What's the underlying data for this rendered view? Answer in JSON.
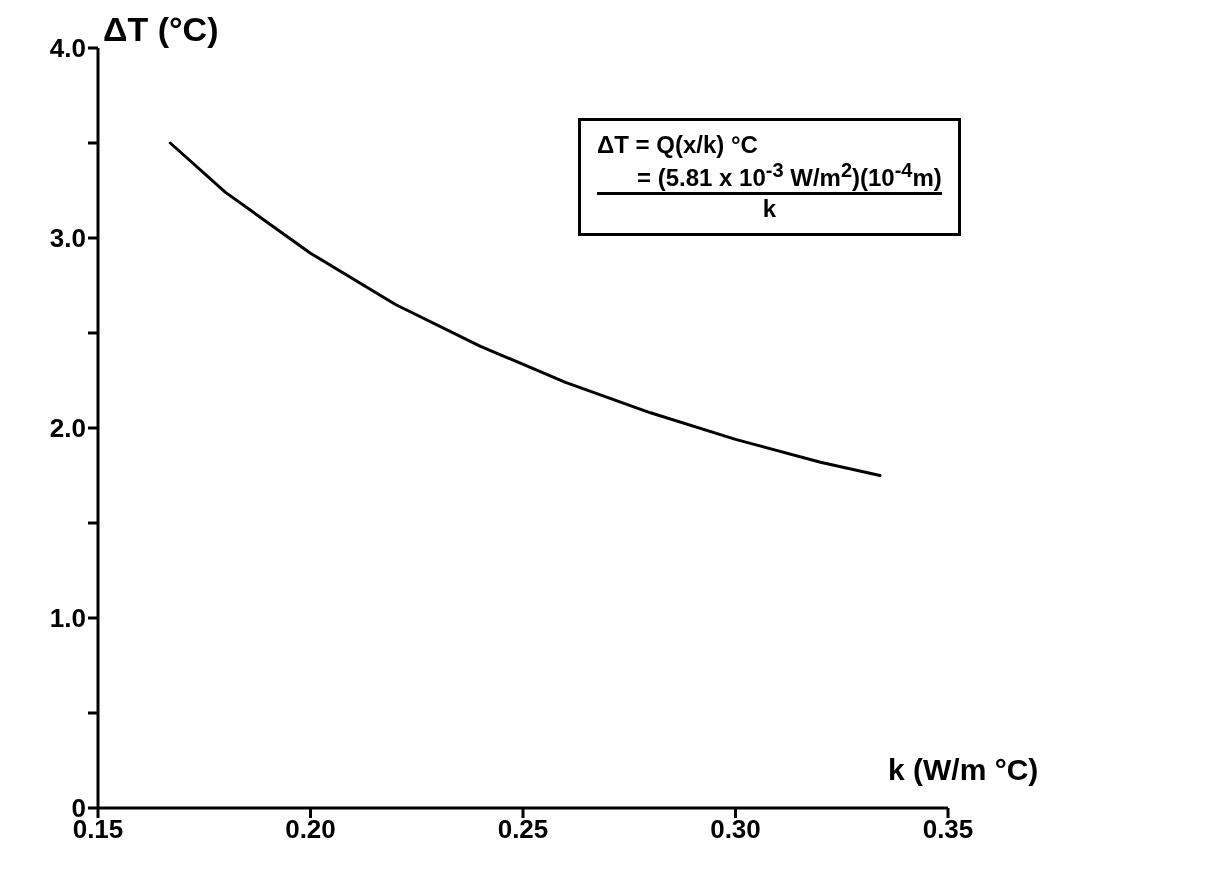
{
  "chart_data": {
    "type": "line",
    "xlabel": "k (W/m °C)",
    "ylabel": "ΔT (°C)",
    "annotations": [
      "ΔT = Q(x/k)  °C",
      "= (5.81 x 10$^{-3}$ W/m$^{2}$)(10$^{-4}$m)",
      "k"
    ],
    "x": [
      0.167,
      0.18,
      0.2,
      0.22,
      0.24,
      0.26,
      0.28,
      0.3,
      0.32,
      0.334
    ],
    "series": [
      {
        "color": "#000000",
        "values": [
          3.5,
          3.24,
          2.92,
          2.65,
          2.43,
          2.24,
          2.08,
          1.94,
          1.82,
          1.75
        ]
      }
    ],
    "xlim": [
      0.15,
      0.35
    ],
    "xticks": [
      0.15,
      {
        "value": 0.2,
        "label": "0.20"
      },
      0.25,
      {
        "value": 0.3,
        "label": "0.30"
      },
      0.35
    ],
    "ylim": [
      0,
      4
    ],
    "yticks": [
      0,
      {
        "value": 0.5,
        "label": null
      },
      {
        "value": 1,
        "label": "1.0"
      },
      {
        "value": 1.5,
        "label": null
      },
      {
        "value": 2,
        "label": "2.0"
      },
      {
        "value": 2.5,
        "label": null
      },
      {
        "value": 3,
        "label": "3.0"
      },
      {
        "value": 3.5,
        "label": null
      },
      {
        "value": 4,
        "label": "4.0"
      }
    ],
    "grid": false,
    "marker": "none",
    "line_style": "solid"
  }
}
